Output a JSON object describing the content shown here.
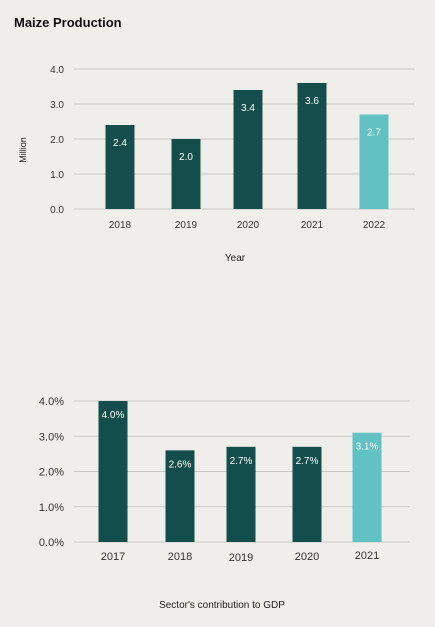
{
  "chart_data": [
    {
      "type": "bar",
      "title": "Maize Production",
      "xlabel": "Year",
      "ylabel": "Million",
      "categories": [
        "2018",
        "2019",
        "2020",
        "2021",
        "2022"
      ],
      "values": [
        2.4,
        2.0,
        3.4,
        3.6,
        2.7
      ],
      "data_labels": [
        "2.4",
        "2.0",
        "3.4",
        "3.6",
        "2.7"
      ],
      "yticks": [
        "0.0",
        "1.0",
        "2.0",
        "3.0",
        "4.0"
      ],
      "ylim": [
        0,
        4
      ],
      "grid": true,
      "bar_colors": [
        "#144e4c",
        "#144e4c",
        "#144e4c",
        "#144e4c",
        "#62c1c3"
      ]
    },
    {
      "type": "bar",
      "title": "",
      "xlabel": "Sector's contribution to GDP",
      "ylabel": "",
      "categories": [
        "2017",
        "2018",
        "2019",
        "2020",
        "2021"
      ],
      "values": [
        4.0,
        2.6,
        2.7,
        2.7,
        3.1
      ],
      "data_labels": [
        "4.0%",
        "2.6%",
        "2.7%",
        "2.7%",
        "3.1%"
      ],
      "yticks": [
        "0.0%",
        "1.0%",
        "2.0%",
        "3.0%",
        "4.0%"
      ],
      "ylim": [
        0,
        4
      ],
      "grid": true,
      "bar_colors": [
        "#144e4c",
        "#144e4c",
        "#144e4c",
        "#144e4c",
        "#62c1c3"
      ]
    }
  ]
}
